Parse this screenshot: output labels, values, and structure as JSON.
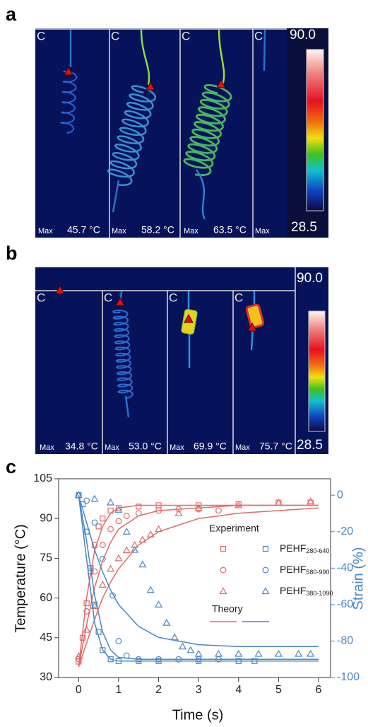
{
  "panel_a": {
    "label": "a",
    "colorbar_max": "90.0",
    "colorbar_min": "28.5",
    "frames": [
      {
        "corner": "C",
        "max_label": "Max",
        "max_value": "45.7 °C"
      },
      {
        "corner": "C",
        "max_label": "Max",
        "max_value": "58.2 °C"
      },
      {
        "corner": "C",
        "max_label": "Max",
        "max_value": "63.5 °C"
      },
      {
        "corner": "C",
        "max_label": "Max"
      }
    ]
  },
  "panel_b": {
    "label": "b",
    "colorbar_max": "90.0",
    "colorbar_min": "28.5",
    "frames": [
      {
        "corner": "C",
        "max_label": "Max",
        "max_value": "34.8 °C"
      },
      {
        "corner": "C",
        "max_label": "Max",
        "max_value": "53.0 °C"
      },
      {
        "corner": "C",
        "max_label": "Max",
        "max_value": "69.9 °C"
      },
      {
        "corner": "C",
        "max_label": "Max",
        "max_value": "75.7 °C"
      }
    ]
  },
  "panel_c": {
    "label": "c"
  },
  "chart_data": {
    "type": "scatter",
    "x_label": "Time (s)",
    "y_label": "Temperature (°C)",
    "y2_label": "Strain (%)",
    "xlim": [
      -0.5,
      6.3
    ],
    "xticks": [
      0,
      1,
      2,
      3,
      4,
      5,
      6
    ],
    "ylim": [
      30,
      105
    ],
    "yticks": [
      30,
      45,
      60,
      75,
      90,
      105
    ],
    "y2lim": [
      -100,
      9
    ],
    "y2ticks": [
      0,
      -20,
      -40,
      -60,
      -80,
      -100
    ],
    "legend_title": "Experiment",
    "theory_label": "Theory",
    "series": [
      {
        "name": "PEHF",
        "subscript": "280-640",
        "shape": "square",
        "color": "#e06a6a",
        "x": [
          0,
          0.1,
          0.2,
          0.3,
          0.4,
          0.5,
          0.6,
          0.8,
          1.0,
          1.5,
          2,
          3,
          4,
          5,
          5.8
        ],
        "values": [
          36,
          45,
          58,
          70,
          80,
          87,
          90,
          93,
          94,
          94.5,
          95,
          95,
          95.5,
          96,
          96
        ]
      },
      {
        "name": "PEHF",
        "subscript": "580-990",
        "shape": "circle",
        "color": "#e06a6a",
        "x": [
          0,
          0.2,
          0.4,
          0.6,
          0.8,
          1,
          1.2,
          1.5,
          2,
          2.5,
          3,
          3.5
        ],
        "values": [
          37,
          55,
          70,
          80,
          86,
          89,
          91,
          92,
          93,
          93.5,
          93.5,
          93
        ]
      },
      {
        "name": "PEHF",
        "subscript": "380-1090",
        "shape": "triangle",
        "color": "#e06a6a",
        "x": [
          0,
          0.2,
          0.4,
          0.6,
          0.8,
          1,
          1.2,
          1.4,
          1.6,
          1.8,
          2,
          2.5,
          3,
          4,
          5,
          5.8
        ],
        "values": [
          38,
          48,
          57,
          65,
          71,
          75,
          78,
          80,
          82,
          84,
          86,
          92,
          94,
          95,
          96,
          96.5
        ]
      },
      {
        "shape": "square",
        "color": "#4a86c5",
        "axis": "y2",
        "x": [
          0,
          0.1,
          0.2,
          0.3,
          0.4,
          0.5,
          0.6,
          0.8,
          1,
          1.5,
          2,
          3,
          4,
          4.4
        ],
        "values": [
          0,
          -5,
          -20,
          -40,
          -60,
          -75,
          -85,
          -90,
          -91,
          -91,
          -91,
          -91,
          -91,
          -91
        ]
      },
      {
        "shape": "circle",
        "color": "#4a86c5",
        "axis": "y2",
        "x": [
          0,
          0.2,
          0.4,
          0.6,
          0.85,
          1,
          1.2,
          1.5,
          2,
          2.5,
          3,
          3.5
        ],
        "values": [
          0,
          -3,
          -15,
          -35,
          -55,
          -80,
          -88,
          -90,
          -90,
          -90,
          -90,
          -90
        ]
      },
      {
        "shape": "triangle",
        "color": "#4a86c5",
        "axis": "y2",
        "x": [
          0,
          0.4,
          0.8,
          1.0,
          1.2,
          1.4,
          1.6,
          1.8,
          2,
          2.2,
          2.4,
          2.6,
          2.8,
          3,
          3.5,
          4,
          4.5,
          5,
          5.5,
          5.8
        ],
        "values": [
          0,
          -2,
          -4,
          -8,
          -20,
          -30,
          -38,
          -52,
          -60,
          -70,
          -78,
          -83,
          -85,
          -87,
          -87,
          -87,
          -87,
          -87,
          -87,
          -87
        ]
      },
      {
        "shape": "line",
        "color": "#e06a6a",
        "x": [
          0,
          0.2,
          0.4,
          0.6,
          0.8,
          1,
          1.5,
          2,
          3,
          4,
          5,
          6
        ],
        "values": [
          34,
          60,
          78,
          87,
          92,
          94,
          95,
          95,
          95,
          95,
          95,
          95
        ]
      },
      {
        "shape": "line",
        "color": "#e06a6a",
        "x": [
          0,
          0.2,
          0.4,
          0.6,
          0.8,
          1,
          1.5,
          2,
          3,
          4,
          5,
          6
        ],
        "values": [
          34,
          50,
          64,
          74,
          81,
          86,
          91,
          93,
          94,
          95,
          95,
          95
        ]
      },
      {
        "shape": "line",
        "color": "#e06a6a",
        "x": [
          0,
          0.2,
          0.4,
          0.6,
          0.8,
          1,
          1.5,
          2,
          3,
          4,
          5,
          6
        ],
        "values": [
          34,
          43,
          52,
          60,
          66,
          71,
          80,
          85,
          90,
          92,
          93,
          94
        ]
      },
      {
        "shape": "line",
        "color": "#4a86c5",
        "axis": "y2",
        "x": [
          0,
          0.2,
          0.4,
          0.6,
          0.8,
          1,
          1.5,
          2,
          3,
          4,
          5,
          6
        ],
        "values": [
          0,
          -35,
          -70,
          -85,
          -90,
          -91,
          -91,
          -91,
          -91,
          -91,
          -91,
          -91
        ]
      },
      {
        "shape": "line",
        "color": "#4a86c5",
        "axis": "y2",
        "x": [
          0,
          0.2,
          0.4,
          0.6,
          0.8,
          1,
          1.5,
          2,
          3,
          4,
          5,
          6
        ],
        "values": [
          0,
          -25,
          -55,
          -75,
          -85,
          -89,
          -90,
          -90,
          -90,
          -90,
          -90,
          -90
        ]
      },
      {
        "shape": "line",
        "color": "#4a86c5",
        "axis": "y2",
        "x": [
          0,
          0.2,
          0.4,
          0.6,
          0.8,
          1,
          1.5,
          2,
          3,
          4,
          5,
          6
        ],
        "values": [
          0,
          -15,
          -30,
          -42,
          -52,
          -60,
          -72,
          -78,
          -82,
          -83,
          -83,
          -83
        ]
      }
    ]
  }
}
